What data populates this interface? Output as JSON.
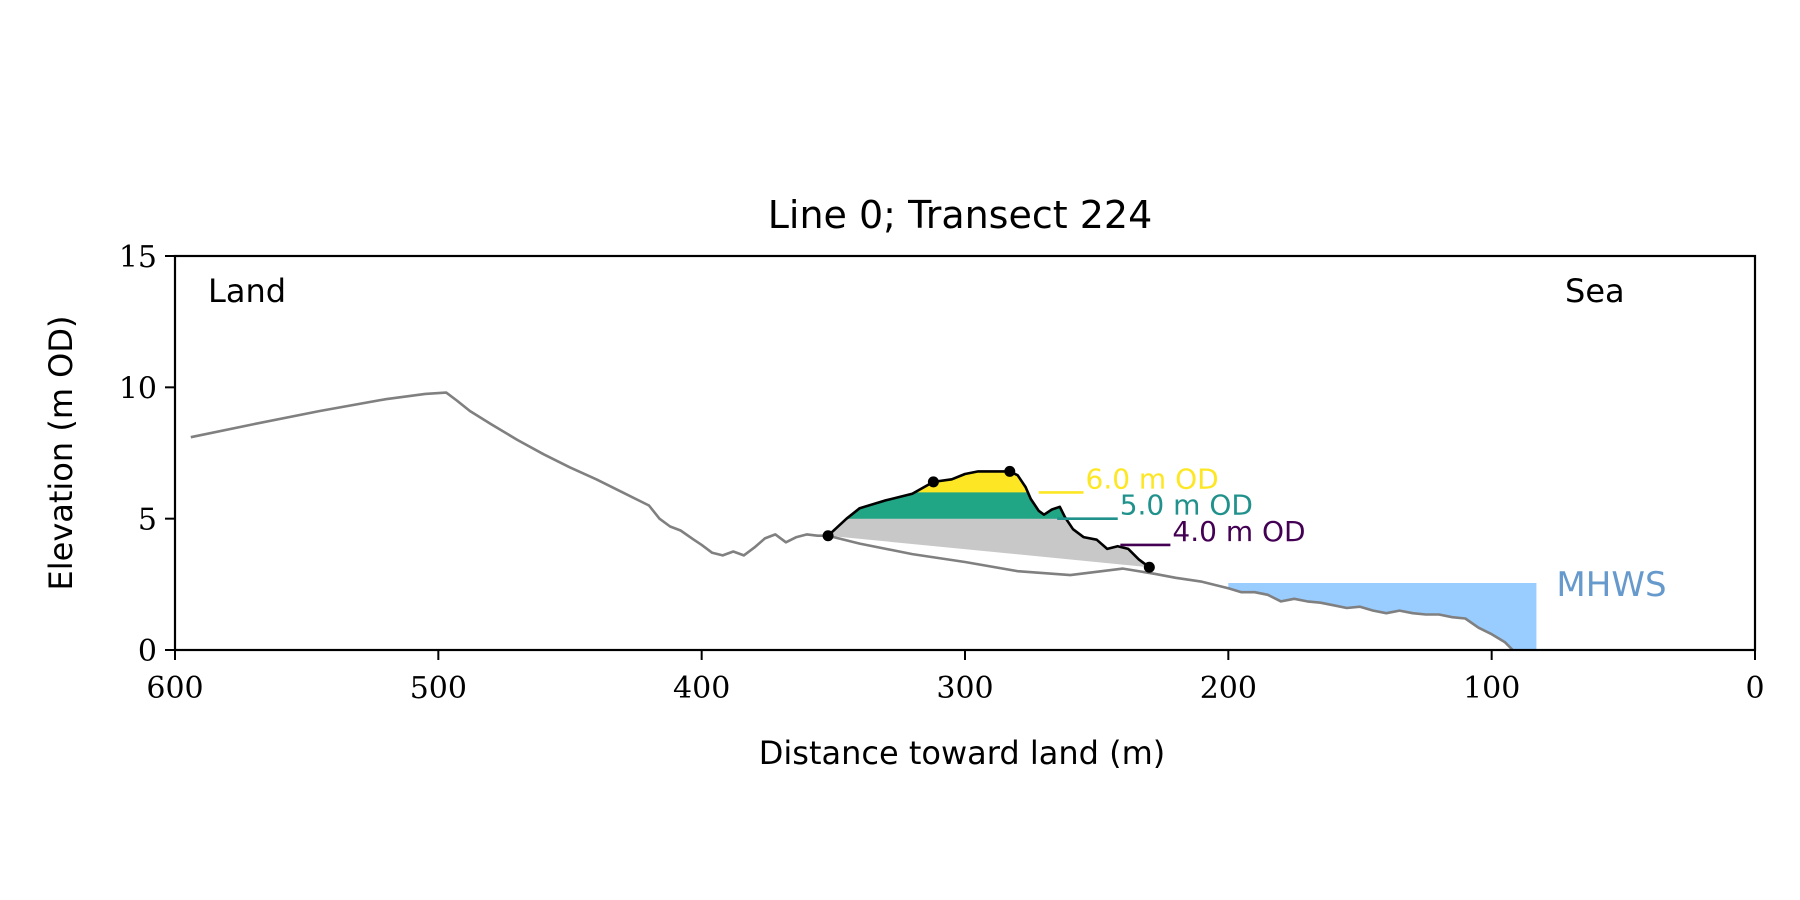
{
  "chart_data": {
    "type": "line",
    "title": "Line 0; Transect 224",
    "xlabel": "Distance toward land (m)",
    "ylabel": "Elevation (m OD)",
    "xlim": [
      600,
      0
    ],
    "ylim": [
      0,
      15
    ],
    "x_ticks": [
      600,
      500,
      400,
      300,
      200,
      100,
      0
    ],
    "x_tick_labels": [
      "600",
      "500",
      "400",
      "300",
      "200",
      "100",
      "0"
    ],
    "y_ticks": [
      0,
      5,
      10,
      15
    ],
    "y_tick_labels": [
      "0",
      "5",
      "10",
      "15"
    ],
    "grid": false,
    "annotations": {
      "land": "Land",
      "sea": "Sea"
    },
    "profile": {
      "color": "#808080",
      "x": [
        594,
        570,
        545,
        520,
        505,
        497,
        493,
        488,
        480,
        470,
        460,
        450,
        440,
        430,
        420,
        416,
        412,
        408,
        403,
        400,
        396,
        392,
        388,
        384,
        380,
        376,
        372,
        368,
        364,
        360,
        356,
        352,
        340,
        320,
        300,
        280,
        260,
        240,
        228,
        220,
        210,
        200,
        195,
        190,
        185,
        180,
        175,
        170,
        165,
        160,
        155,
        150,
        145,
        140,
        135,
        130,
        125,
        120,
        115,
        110,
        105,
        100,
        95,
        92
      ],
      "y": [
        8.1,
        8.6,
        9.1,
        9.55,
        9.75,
        9.8,
        9.5,
        9.1,
        8.6,
        8.0,
        7.45,
        6.95,
        6.5,
        6.0,
        5.5,
        5.0,
        4.7,
        4.55,
        4.2,
        4.0,
        3.7,
        3.6,
        3.75,
        3.6,
        3.9,
        4.25,
        4.4,
        4.1,
        4.3,
        4.4,
        4.35,
        4.35,
        4.05,
        3.65,
        3.35,
        3.0,
        2.85,
        3.1,
        2.9,
        2.75,
        2.6,
        2.35,
        2.2,
        2.2,
        2.1,
        1.85,
        1.95,
        1.85,
        1.8,
        1.7,
        1.6,
        1.65,
        1.5,
        1.4,
        1.5,
        1.4,
        1.35,
        1.35,
        1.25,
        1.2,
        0.85,
        0.6,
        0.3,
        0.0
      ]
    },
    "dune": {
      "color": "#000000",
      "x": [
        352,
        345,
        340,
        330,
        320,
        312,
        305,
        300,
        295,
        290,
        283,
        280,
        277,
        275,
        272,
        270,
        267,
        264,
        262,
        259,
        255,
        250,
        246,
        242,
        238,
        234,
        230
      ],
      "y": [
        4.35,
        5.0,
        5.4,
        5.7,
        5.95,
        6.4,
        6.5,
        6.7,
        6.8,
        6.8,
        6.8,
        6.65,
        6.2,
        5.75,
        5.3,
        5.15,
        5.35,
        5.45,
        5.05,
        4.6,
        4.3,
        4.2,
        3.85,
        3.95,
        3.85,
        3.45,
        3.15
      ]
    },
    "key_points": [
      {
        "name": "dune toe",
        "x": 352,
        "y": 4.35
      },
      {
        "name": "crest 1",
        "x": 312,
        "y": 6.4
      },
      {
        "name": "crest 2",
        "x": 283,
        "y": 6.8
      },
      {
        "name": "dune end",
        "x": 230,
        "y": 3.15
      }
    ],
    "fills": [
      {
        "name": "base",
        "color": "#c8c8c8"
      },
      {
        "level": 5.0,
        "color": "#21a685"
      },
      {
        "level": 6.0,
        "color": "#fde725"
      }
    ],
    "contours": [
      {
        "label": "6.0 m OD",
        "level": 6.0,
        "x_start": 272,
        "x_end": 255,
        "color": "#fde725"
      },
      {
        "label": "5.0 m OD",
        "level": 5.0,
        "x_start": 265,
        "x_end": 242,
        "color": "#21918c"
      },
      {
        "label": "4.0 m OD",
        "level": 4.0,
        "x_start": 241,
        "x_end": 222,
        "color": "#440154"
      }
    ],
    "mhws": {
      "label": "MHWS",
      "level": 2.55,
      "x_from": 200,
      "x_to": 83,
      "fill_color": "#99ccff",
      "label_color": "#6699cc"
    }
  }
}
